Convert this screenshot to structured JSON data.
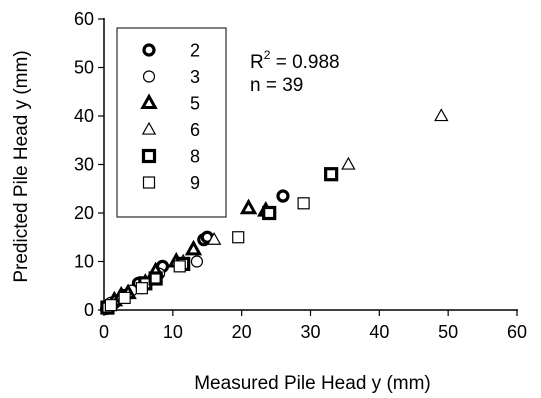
{
  "chart_data": {
    "type": "scatter",
    "title": "",
    "xlabel": "Measured Pile Head y (mm)",
    "ylabel": "Predicted Pile Head y (mm)",
    "xlim": [
      0,
      60
    ],
    "ylim": [
      0,
      60
    ],
    "xticks": [
      0,
      10,
      20,
      30,
      40,
      50,
      60
    ],
    "yticks": [
      0,
      10,
      20,
      30,
      40,
      50,
      60
    ],
    "grid": false,
    "legend_position": "top-left",
    "annotations": {
      "r2_prefix": "R",
      "r2_exp": "2",
      "r2_value": " = 0.988",
      "n_text": "n = 39"
    },
    "series": [
      {
        "name": "2",
        "marker": "circle-dot",
        "points": [
          [
            0.5,
            0.5
          ],
          [
            1.5,
            1.5
          ],
          [
            3,
            3
          ],
          [
            5,
            5.5
          ],
          [
            8.5,
            9
          ],
          [
            14.5,
            14.5
          ],
          [
            15,
            15
          ],
          [
            26,
            23.5
          ]
        ]
      },
      {
        "name": "3",
        "marker": "circle",
        "points": [
          [
            0.3,
            0.2
          ],
          [
            1,
            1.5
          ],
          [
            4,
            4
          ],
          [
            5.5,
            4.5
          ],
          [
            8,
            7.5
          ],
          [
            13.5,
            10
          ]
        ]
      },
      {
        "name": "5",
        "marker": "triangle-dot",
        "points": [
          [
            1.5,
            2
          ],
          [
            2.5,
            3
          ],
          [
            3.5,
            3.5
          ],
          [
            7.5,
            8
          ],
          [
            10.5,
            10
          ],
          [
            13,
            12.5
          ],
          [
            21,
            21
          ],
          [
            23.5,
            20.5
          ]
        ]
      },
      {
        "name": "6",
        "marker": "triangle",
        "points": [
          [
            6,
            6
          ],
          [
            11.5,
            10
          ],
          [
            16,
            14.5
          ],
          [
            35.5,
            30
          ],
          [
            49,
            40
          ]
        ]
      },
      {
        "name": "8",
        "marker": "square-dot",
        "points": [
          [
            0.5,
            0.5
          ],
          [
            6,
            5.5
          ],
          [
            7.5,
            6.5
          ],
          [
            11.5,
            9.5
          ],
          [
            24,
            20
          ],
          [
            33,
            28
          ]
        ]
      },
      {
        "name": "9",
        "marker": "square",
        "points": [
          [
            1,
            1
          ],
          [
            3,
            2.5
          ],
          [
            5.5,
            4.5
          ],
          [
            11,
            9
          ],
          [
            19.5,
            15
          ],
          [
            29,
            22
          ]
        ]
      }
    ]
  }
}
